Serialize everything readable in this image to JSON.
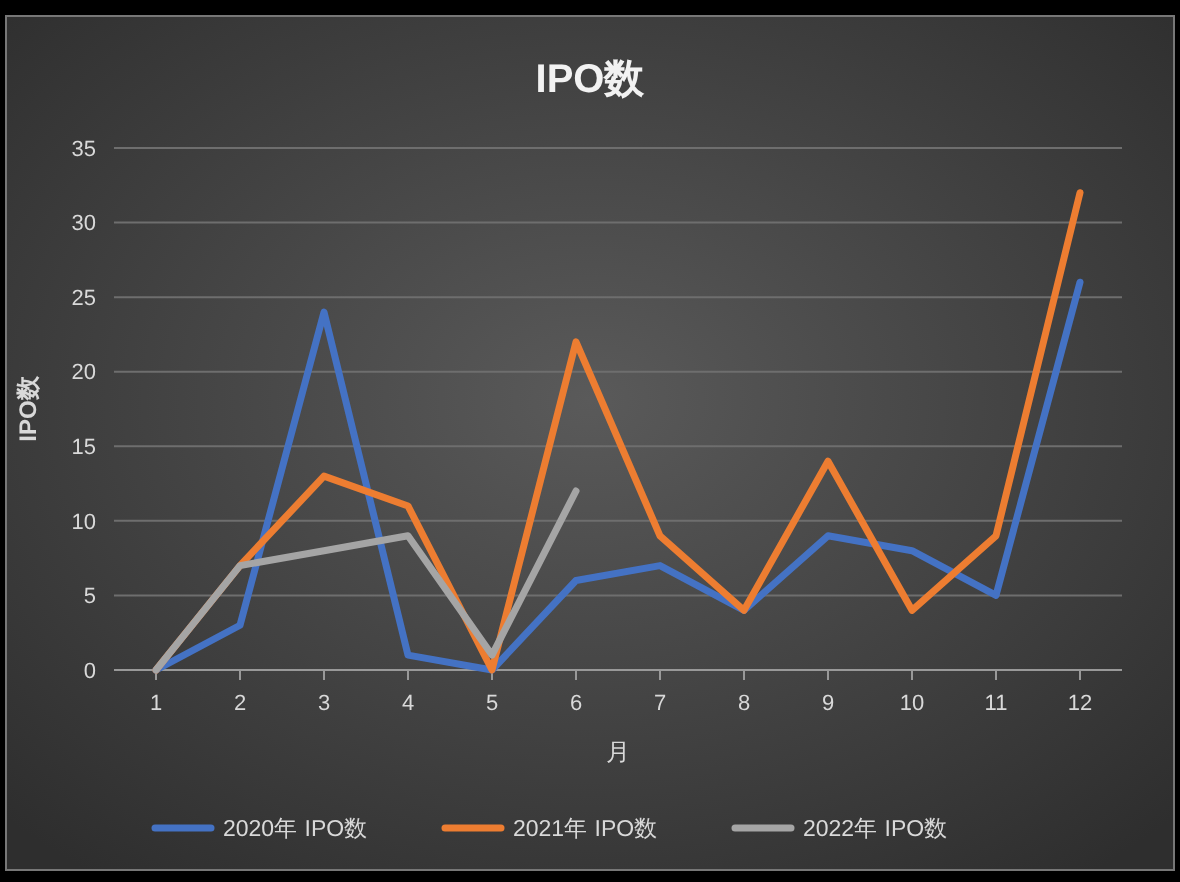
{
  "chart_data": {
    "type": "line",
    "title": "IPO数",
    "xlabel": "月",
    "ylabel": "IPO数",
    "x": [
      1,
      2,
      3,
      4,
      5,
      6,
      7,
      8,
      9,
      10,
      11,
      12
    ],
    "xlim": [
      0.5,
      12.5
    ],
    "xticks": [
      1,
      2,
      3,
      4,
      5,
      6,
      7,
      8,
      9,
      10,
      11,
      12
    ],
    "series": [
      {
        "name": "2020年 IPO数",
        "color": "#4472c4",
        "values": [
          0,
          3,
          24,
          1,
          0,
          6,
          7,
          4,
          9,
          8,
          5,
          26
        ]
      },
      {
        "name": "2021年 IPO数",
        "color": "#ed7d31",
        "values": [
          0,
          7,
          13,
          11,
          0,
          22,
          9,
          4,
          14,
          4,
          9,
          32
        ]
      },
      {
        "name": "2022年 IPO数",
        "color": "#a5a5a5",
        "values": [
          0,
          7,
          8,
          9,
          1,
          12,
          null,
          null,
          null,
          null,
          null,
          null
        ]
      }
    ],
    "ylim": [
      0,
      35
    ],
    "yticks": [
      0,
      5,
      10,
      15,
      20,
      25,
      30,
      35
    ],
    "grid": "y",
    "legend": "bottom",
    "marker": "none",
    "line_style": "solid"
  }
}
